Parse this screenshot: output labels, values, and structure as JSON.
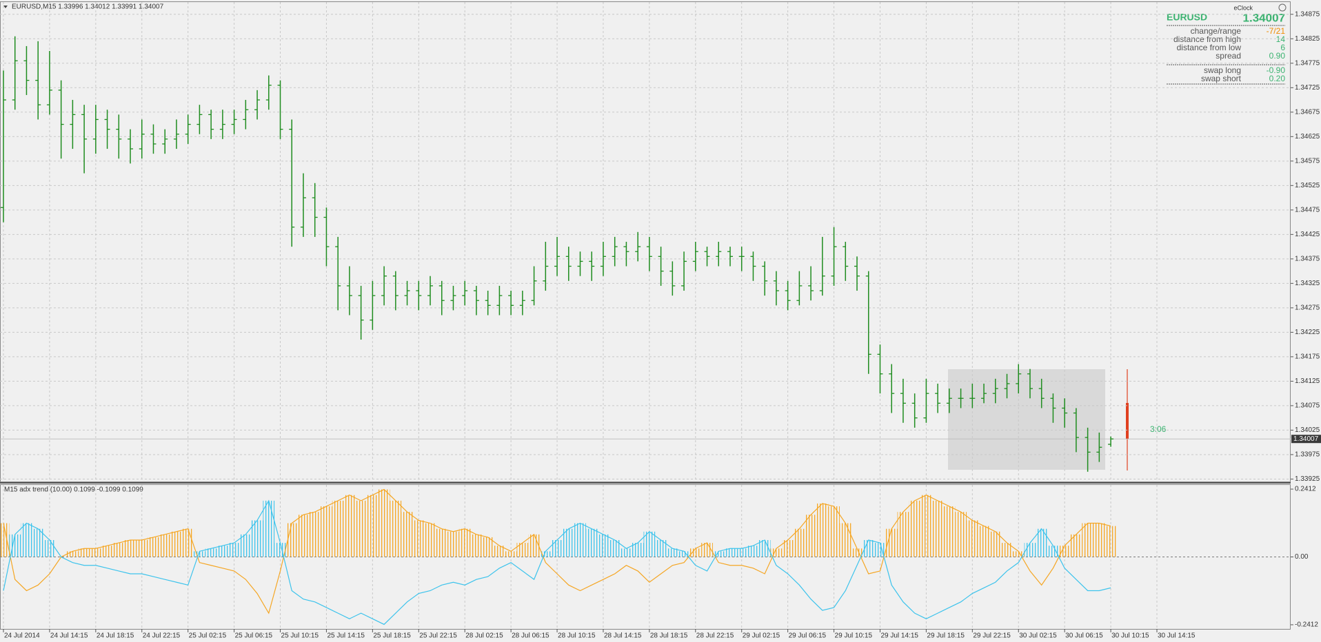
{
  "chart_data": [
    {
      "type": "ohlc",
      "title": "EURUSD,M15  1.33996 1.34012 1.33991 1.34007",
      "color": "#1e8c1e",
      "grid": true,
      "ylim": [
        1.3392,
        1.349
      ],
      "yticks": [
        1.34875,
        1.34825,
        1.34775,
        1.34725,
        1.34675,
        1.34625,
        1.34575,
        1.34525,
        1.34475,
        1.34425,
        1.34375,
        1.34325,
        1.34275,
        1.34225,
        1.34175,
        1.34125,
        1.34075,
        1.34025,
        1.33975,
        1.33925
      ],
      "categories": [
        "24 Jul 2014",
        null,
        null,
        null,
        "24 Jul 14:15",
        null,
        null,
        null,
        "24 Jul 18:15",
        null,
        null,
        null,
        "24 Jul 22:15",
        null,
        null,
        null,
        "25 Jul 02:15",
        null,
        null,
        null,
        "25 Jul 06:15",
        null,
        null,
        null,
        "25 Jul 10:15",
        null,
        null,
        null,
        "25 Jul 14:15",
        null,
        null,
        null,
        "25 Jul 18:15",
        null,
        null,
        null,
        "25 Jul 22:15",
        null,
        null,
        null,
        "28 Jul 02:15",
        null,
        null,
        null,
        "28 Jul 06:15",
        null,
        null,
        null,
        "28 Jul 10:15",
        null,
        null,
        null,
        "28 Jul 14:15",
        null,
        null,
        null,
        "28 Jul 18:15",
        null,
        null,
        null,
        "28 Jul 22:15",
        null,
        null,
        null,
        "29 Jul 02:15",
        null,
        null,
        null,
        "29 Jul 06:15",
        null,
        null,
        null,
        "29 Jul 10:15",
        null,
        null,
        null,
        "29 Jul 14:15",
        null,
        null,
        null,
        "29 Jul 18:15",
        null,
        null,
        null,
        "29 Jul 22:15",
        null,
        null,
        null,
        "30 Jul 02:15",
        null,
        null,
        null,
        "30 Jul 06:15",
        null,
        null,
        null,
        "30 Jul 10:15",
        null,
        null,
        null,
        "30 Jul 14:15"
      ],
      "ohlc": [
        [
          1.3448,
          1.3476,
          1.3445,
          1.347
        ],
        [
          1.347,
          1.3483,
          1.3468,
          1.3478
        ],
        [
          1.3478,
          1.3481,
          1.3471,
          1.3474
        ],
        [
          1.3474,
          1.3482,
          1.3466,
          1.3469
        ],
        [
          1.3469,
          1.348,
          1.3467,
          1.3472
        ],
        [
          1.3472,
          1.3474,
          1.3458,
          1.3465
        ],
        [
          1.3465,
          1.347,
          1.346,
          1.3467
        ],
        [
          1.3467,
          1.3469,
          1.3455,
          1.3462
        ],
        [
          1.3462,
          1.3469,
          1.3459,
          1.3466
        ],
        [
          1.3466,
          1.3468,
          1.346,
          1.3464
        ],
        [
          1.3464,
          1.3467,
          1.3458,
          1.3462
        ],
        [
          1.3462,
          1.3464,
          1.3457,
          1.346
        ],
        [
          1.346,
          1.3466,
          1.3458,
          1.3463
        ],
        [
          1.3463,
          1.3465,
          1.3459,
          1.3461
        ],
        [
          1.3461,
          1.3464,
          1.3459,
          1.3462
        ],
        [
          1.3462,
          1.3466,
          1.346,
          1.3463
        ],
        [
          1.3463,
          1.3467,
          1.3461,
          1.3465
        ],
        [
          1.3465,
          1.3469,
          1.3463,
          1.3467
        ],
        [
          1.3467,
          1.3468,
          1.3462,
          1.3464
        ],
        [
          1.3464,
          1.3468,
          1.3462,
          1.3465
        ],
        [
          1.3465,
          1.3468,
          1.3463,
          1.3466
        ],
        [
          1.3466,
          1.347,
          1.3464,
          1.3468
        ],
        [
          1.3468,
          1.3472,
          1.3466,
          1.347
        ],
        [
          1.347,
          1.3475,
          1.3468,
          1.3473
        ],
        [
          1.3473,
          1.3474,
          1.3462,
          1.3464
        ],
        [
          1.3464,
          1.3466,
          1.344,
          1.3444
        ],
        [
          1.3444,
          1.3455,
          1.3442,
          1.345
        ],
        [
          1.345,
          1.3453,
          1.3442,
          1.3446
        ],
        [
          1.3446,
          1.3448,
          1.3436,
          1.344
        ],
        [
          1.344,
          1.3442,
          1.3427,
          1.3432
        ],
        [
          1.3432,
          1.3436,
          1.3426,
          1.343
        ],
        [
          1.343,
          1.3432,
          1.3421,
          1.3425
        ],
        [
          1.3425,
          1.3433,
          1.3423,
          1.343
        ],
        [
          1.343,
          1.3436,
          1.3428,
          1.3434
        ],
        [
          1.3434,
          1.3435,
          1.3427,
          1.343
        ],
        [
          1.343,
          1.3433,
          1.3428,
          1.3431
        ],
        [
          1.3431,
          1.3433,
          1.3427,
          1.343
        ],
        [
          1.343,
          1.3434,
          1.3428,
          1.3432
        ],
        [
          1.3432,
          1.3433,
          1.3426,
          1.3429
        ],
        [
          1.3429,
          1.3432,
          1.3427,
          1.343
        ],
        [
          1.343,
          1.3433,
          1.3428,
          1.3431
        ],
        [
          1.3431,
          1.3432,
          1.3426,
          1.3429
        ],
        [
          1.3429,
          1.3431,
          1.3426,
          1.3428
        ],
        [
          1.3428,
          1.3432,
          1.3426,
          1.343
        ],
        [
          1.343,
          1.3431,
          1.3426,
          1.3428
        ],
        [
          1.3428,
          1.3431,
          1.3426,
          1.3429
        ],
        [
          1.3429,
          1.3436,
          1.3428,
          1.3433
        ],
        [
          1.3433,
          1.3441,
          1.3431,
          1.3436
        ],
        [
          1.3436,
          1.3442,
          1.3434,
          1.3438
        ],
        [
          1.3438,
          1.344,
          1.3433,
          1.3436
        ],
        [
          1.3436,
          1.3439,
          1.3434,
          1.3437
        ],
        [
          1.3437,
          1.3439,
          1.3433,
          1.3436
        ],
        [
          1.3436,
          1.3441,
          1.3434,
          1.3438
        ],
        [
          1.3438,
          1.3442,
          1.3436,
          1.344
        ],
        [
          1.344,
          1.3441,
          1.3436,
          1.3439
        ],
        [
          1.3439,
          1.3443,
          1.3437,
          1.344
        ],
        [
          1.344,
          1.3442,
          1.3435,
          1.3438
        ],
        [
          1.3438,
          1.344,
          1.3432,
          1.3435
        ],
        [
          1.3435,
          1.3437,
          1.343,
          1.3432
        ],
        [
          1.3432,
          1.3439,
          1.3431,
          1.3437
        ],
        [
          1.3437,
          1.3441,
          1.3435,
          1.3439
        ],
        [
          1.3439,
          1.344,
          1.3436,
          1.3438
        ],
        [
          1.3438,
          1.3441,
          1.3436,
          1.3439
        ],
        [
          1.3439,
          1.344,
          1.3436,
          1.3438
        ],
        [
          1.3438,
          1.344,
          1.3435,
          1.3438
        ],
        [
          1.3438,
          1.3439,
          1.3433,
          1.3436
        ],
        [
          1.3436,
          1.3437,
          1.343,
          1.3433
        ],
        [
          1.3433,
          1.3435,
          1.3428,
          1.3431
        ],
        [
          1.3431,
          1.3433,
          1.3427,
          1.3429
        ],
        [
          1.3429,
          1.3435,
          1.3428,
          1.3432
        ],
        [
          1.3432,
          1.3436,
          1.3429,
          1.3431
        ],
        [
          1.3431,
          1.3442,
          1.343,
          1.3434
        ],
        [
          1.3434,
          1.3444,
          1.3432,
          1.344
        ],
        [
          1.344,
          1.3441,
          1.3433,
          1.3436
        ],
        [
          1.3436,
          1.3438,
          1.3431,
          1.3434
        ],
        [
          1.3434,
          1.3435,
          1.3414,
          1.3418
        ],
        [
          1.3418,
          1.342,
          1.341,
          1.3414
        ],
        [
          1.3414,
          1.3416,
          1.3406,
          1.341
        ],
        [
          1.341,
          1.3413,
          1.3404,
          1.3408
        ],
        [
          1.3408,
          1.341,
          1.3403,
          1.3405
        ],
        [
          1.3405,
          1.3413,
          1.3404,
          1.341
        ],
        [
          1.341,
          1.3412,
          1.3406,
          1.3408
        ],
        [
          1.3408,
          1.3411,
          1.3406,
          1.3409
        ],
        [
          1.3409,
          1.3411,
          1.3407,
          1.3409
        ],
        [
          1.3409,
          1.3412,
          1.3407,
          1.3409
        ],
        [
          1.3409,
          1.3412,
          1.3408,
          1.341
        ],
        [
          1.341,
          1.3413,
          1.3408,
          1.3411
        ],
        [
          1.3411,
          1.3414,
          1.3409,
          1.3412
        ],
        [
          1.3412,
          1.3416,
          1.341,
          1.3414
        ],
        [
          1.3414,
          1.3415,
          1.3409,
          1.3411
        ],
        [
          1.3411,
          1.3413,
          1.3407,
          1.3409
        ],
        [
          1.3409,
          1.341,
          1.3404,
          1.3407
        ],
        [
          1.3407,
          1.3409,
          1.3403,
          1.3406
        ],
        [
          1.3406,
          1.3407,
          1.3398,
          1.3401
        ],
        [
          1.3401,
          1.3403,
          1.3394,
          1.3398
        ],
        [
          1.3398,
          1.3402,
          1.3396,
          1.3399
        ],
        [
          1.33996,
          1.34012,
          1.33991,
          1.34007
        ]
      ]
    },
    {
      "type": "trend",
      "title": "M15 adx trend (10.00) 0.1099 -0.1099 0.1099",
      "ylim": [
        -0.256,
        0.256
      ],
      "yticks": [
        0.2412,
        {
          "value": 0,
          "label": "0.00"
        },
        -0.2412
      ],
      "series": [
        {
          "color": "#f5a623",
          "values": [
            0.12,
            -0.08,
            -0.12,
            -0.1,
            -0.06,
            0,
            0.02,
            0.03,
            0.03,
            0.04,
            0.05,
            0.06,
            0.06,
            0.07,
            0.08,
            0.09,
            0.1,
            -0.02,
            -0.03,
            -0.04,
            -0.05,
            -0.08,
            -0.13,
            -0.2,
            -0.05,
            0.12,
            0.15,
            0.16,
            0.18,
            0.2,
            0.22,
            0.2,
            0.22,
            0.24,
            0.2,
            0.16,
            0.13,
            0.12,
            0.1,
            0.09,
            0.1,
            0.08,
            0.07,
            0.04,
            0.02,
            0.05,
            0.08,
            -0.02,
            -0.06,
            -0.1,
            -0.12,
            -0.1,
            -0.08,
            -0.06,
            -0.03,
            -0.05,
            -0.09,
            -0.06,
            -0.03,
            -0.02,
            0.03,
            0.05,
            -0.02,
            -0.03,
            -0.03,
            -0.04,
            -0.06,
            0.03,
            0.06,
            0.1,
            0.15,
            0.19,
            0.18,
            0.12,
            0.03,
            -0.06,
            -0.05,
            0.1,
            0.16,
            0.2,
            0.22,
            0.2,
            0.18,
            0.16,
            0.13,
            0.11,
            0.09,
            0.05,
            0.02,
            -0.05,
            -0.1,
            -0.04,
            0.04,
            0.08,
            0.12,
            0.12,
            0.1099
          ]
        },
        {
          "color": "#3cc3ec",
          "values": [
            -0.12,
            0.08,
            0.12,
            0.1,
            0.06,
            0,
            -0.02,
            -0.03,
            -0.03,
            -0.04,
            -0.05,
            -0.06,
            -0.06,
            -0.07,
            -0.08,
            -0.09,
            -0.1,
            0.02,
            0.03,
            0.04,
            0.05,
            0.08,
            0.13,
            0.2,
            0.05,
            -0.12,
            -0.15,
            -0.16,
            -0.18,
            -0.2,
            -0.22,
            -0.2,
            -0.22,
            -0.24,
            -0.2,
            -0.16,
            -0.13,
            -0.12,
            -0.1,
            -0.09,
            -0.1,
            -0.08,
            -0.07,
            -0.04,
            -0.02,
            -0.05,
            -0.08,
            0.02,
            0.06,
            0.1,
            0.12,
            0.1,
            0.08,
            0.06,
            0.03,
            0.05,
            0.09,
            0.06,
            0.03,
            0.02,
            -0.03,
            -0.05,
            0.02,
            0.03,
            0.03,
            0.04,
            0.06,
            -0.03,
            -0.06,
            -0.1,
            -0.15,
            -0.19,
            -0.18,
            -0.12,
            -0.03,
            0.06,
            0.05,
            -0.1,
            -0.16,
            -0.2,
            -0.22,
            -0.2,
            -0.18,
            -0.16,
            -0.13,
            -0.11,
            -0.09,
            -0.05,
            -0.02,
            0.05,
            0.1,
            0.04,
            -0.04,
            -0.08,
            -0.12,
            -0.12,
            -0.1099
          ]
        }
      ]
    }
  ],
  "clock": {
    "title": "eClock",
    "symbol": "EURUSD",
    "price": "1.34007",
    "countdown": "3:06",
    "rows": [
      {
        "label": "change/range",
        "value": "-7/21",
        "color": "#f08c00"
      },
      {
        "label": "distance from high",
        "value": "14",
        "color": "#3cb371"
      },
      {
        "label": "distance from low",
        "value": "6",
        "color": "#3cb371"
      },
      {
        "label": "spread",
        "value": "0.90",
        "color": "#3cb371"
      }
    ],
    "swap": [
      {
        "label": "swap long",
        "value": "-0.90",
        "color": "#3cb371"
      },
      {
        "label": "swap short",
        "value": "0.20",
        "color": "#3cb371"
      }
    ]
  }
}
